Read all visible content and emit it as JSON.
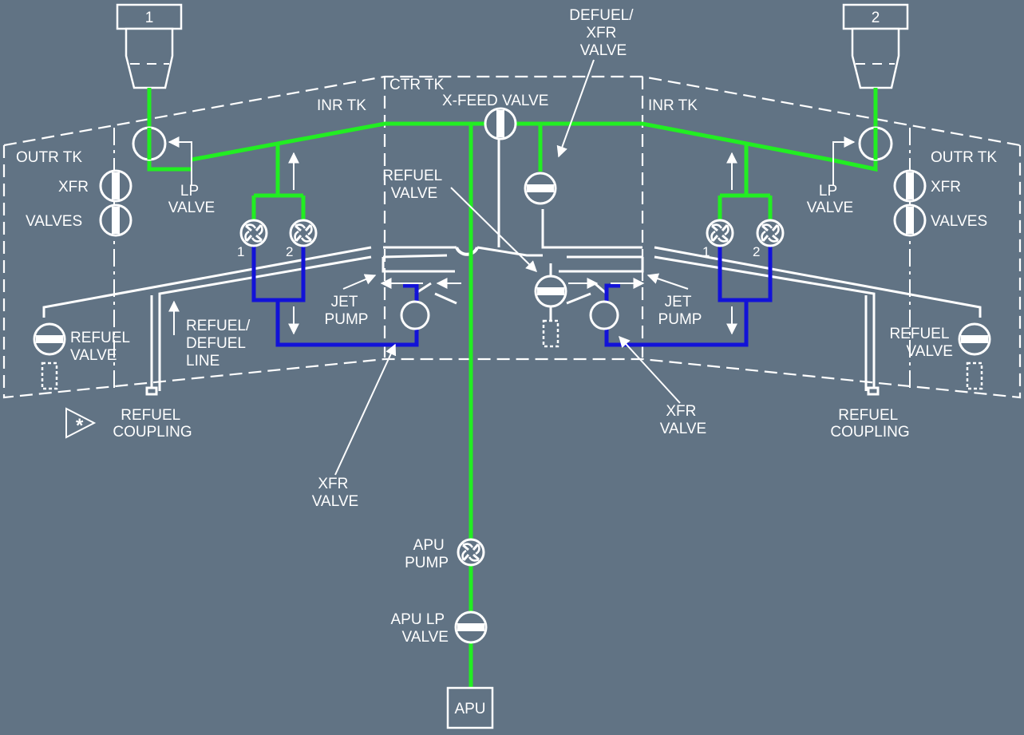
{
  "colors": {
    "background": "#617384",
    "fuel_feed": "#22ee22",
    "transfer": "#1212d8",
    "lines": "#ffffff"
  },
  "engines": {
    "left": "1",
    "right": "2"
  },
  "tanks": {
    "center": "CTR TK",
    "inner_left": "INR TK",
    "inner_right": "INR TK",
    "outer_left": "OUTR TK",
    "outer_right": "OUTR TK"
  },
  "labels": {
    "xfeed_valve": "X-FEED VALVE",
    "defuel_xfr_valve": [
      "DEFUEL/",
      "XFR",
      "VALVE"
    ],
    "lp_valve_left": [
      "LP",
      "VALVE"
    ],
    "lp_valve_right": [
      "LP",
      "VALVE"
    ],
    "xfr_left": "XFR",
    "valves_left": "VALVES",
    "xfr_right": "XFR",
    "valves_right": "VALVES",
    "refuel_valve_center": [
      "REFUEL",
      "VALVE"
    ],
    "refuel_valve_left": [
      "REFUEL",
      "VALVE"
    ],
    "refuel_valve_right": [
      "REFUEL",
      "VALVE"
    ],
    "refuel_defuel_line": [
      "REFUEL/",
      "DEFUEL",
      "LINE"
    ],
    "jet_pump_left": [
      "JET",
      "PUMP"
    ],
    "jet_pump_right": [
      "JET",
      "PUMP"
    ],
    "refuel_coupling_left": [
      "REFUEL",
      "COUPLING"
    ],
    "refuel_coupling_right": [
      "REFUEL",
      "COUPLING"
    ],
    "xfr_valve_left": [
      "XFR",
      "VALVE"
    ],
    "xfr_valve_right": [
      "XFR",
      "VALVE"
    ],
    "apu_pump": [
      "APU",
      "PUMP"
    ],
    "apu_lp_valve": [
      "APU LP",
      "VALVE"
    ],
    "apu": "APU",
    "pump_left_1": "1",
    "pump_left_2": "2",
    "pump_right_1": "1",
    "pump_right_2": "2"
  },
  "icons": {
    "asterisk_marker": "asterisk-triangle-icon",
    "pump": "pump-icon",
    "valve": "valve-icon"
  }
}
